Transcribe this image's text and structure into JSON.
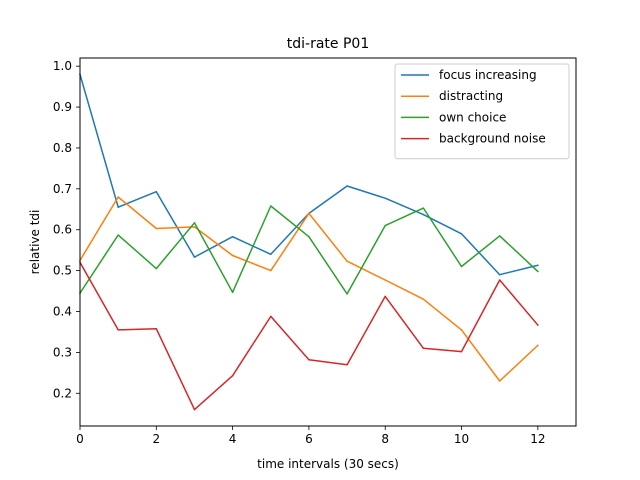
{
  "chart_data": {
    "type": "line",
    "title": "tdi-rate P01",
    "xlabel": "time intervals (30 secs)",
    "ylabel": "relative tdi",
    "xlim": [
      0,
      13
    ],
    "ylim": [
      0.12,
      1.02
    ],
    "xticks": [
      0,
      2,
      4,
      6,
      8,
      10,
      12
    ],
    "yticks": [
      0.2,
      0.3,
      0.4,
      0.5,
      0.6,
      0.7,
      0.8,
      0.9,
      1.0
    ],
    "x": [
      0,
      1,
      2,
      3,
      4,
      5,
      6,
      7,
      8,
      9,
      10,
      11,
      12
    ],
    "grid": false,
    "legend_position": "top-right",
    "series": [
      {
        "name": "focus increasing",
        "color": "#1f77b4",
        "values": [
          0.98,
          0.655,
          0.693,
          0.533,
          0.583,
          0.54,
          0.64,
          0.707,
          0.677,
          0.637,
          0.59,
          0.49,
          0.513
        ]
      },
      {
        "name": "distracting",
        "color": "#ff7f0e",
        "values": [
          0.525,
          0.68,
          0.603,
          0.607,
          0.537,
          0.5,
          0.64,
          0.523,
          0.477,
          0.43,
          0.355,
          0.23,
          0.317
        ]
      },
      {
        "name": "own choice",
        "color": "#2ca02c",
        "values": [
          0.445,
          0.587,
          0.505,
          0.617,
          0.447,
          0.658,
          0.583,
          0.443,
          0.61,
          0.653,
          0.51,
          0.585,
          0.498
        ]
      },
      {
        "name": "background noise",
        "color": "#d62728",
        "values": [
          0.52,
          0.355,
          0.358,
          0.16,
          0.243,
          0.388,
          0.282,
          0.27,
          0.437,
          0.31,
          0.302,
          0.477,
          0.367
        ]
      }
    ]
  }
}
